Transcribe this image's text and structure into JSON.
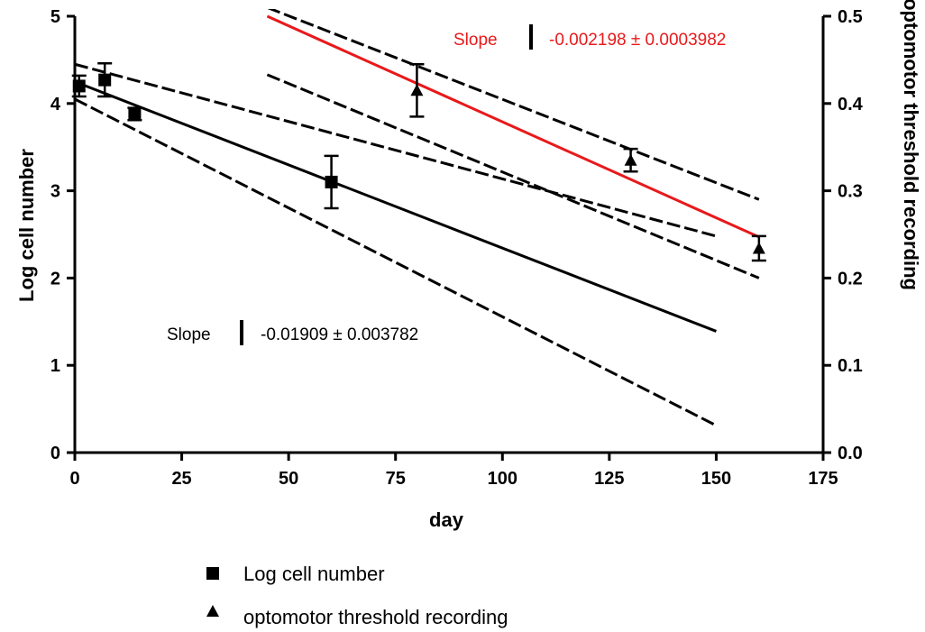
{
  "chart_data": {
    "type": "scatter",
    "x_axis": {
      "label": "day",
      "range": [
        0,
        175
      ],
      "ticks": [
        0,
        25,
        50,
        75,
        100,
        125,
        150,
        175
      ]
    },
    "y_axis_left": {
      "label": "Log cell number",
      "range": [
        0,
        5
      ],
      "ticks": [
        0,
        1,
        2,
        3,
        4,
        5
      ]
    },
    "y_axis_right": {
      "label": "optomotor threshold recording",
      "range": [
        0.0,
        0.5
      ],
      "ticks": [
        "0.0",
        "0.1",
        "0.2",
        "0.3",
        "0.4",
        "0.5"
      ]
    },
    "grid": false,
    "legend_position": "bottom",
    "series": [
      {
        "name": "Log cell number",
        "axis": "left",
        "marker": "square",
        "color": "#000000",
        "points": [
          {
            "x": 1,
            "y": 4.2,
            "err": 0.12
          },
          {
            "x": 7,
            "y": 4.27,
            "err": 0.19
          },
          {
            "x": 14,
            "y": 3.88,
            "err": 0.07
          },
          {
            "x": 60,
            "y": 3.1,
            "err": 0.3
          }
        ],
        "fit": {
          "x": [
            0,
            150
          ],
          "y": [
            4.25,
            1.39
          ]
        },
        "ci_upper": {
          "x": [
            0,
            150
          ],
          "y": [
            4.45,
            2.48
          ]
        },
        "ci_lower": {
          "x": [
            0,
            150
          ],
          "y": [
            4.05,
            0.31
          ]
        },
        "slope_label": "Slope",
        "slope_value": "-0.01909 ± 0.003782"
      },
      {
        "name": "optomotor threshold recording",
        "axis": "right",
        "marker": "triangle",
        "color": "#000000",
        "points": [
          {
            "x": 80,
            "y": 0.415,
            "err": 0.03
          },
          {
            "x": 130,
            "y": 0.335,
            "err": 0.013
          },
          {
            "x": 160,
            "y": 0.234,
            "err": 0.014
          }
        ],
        "fit": {
          "x": [
            45,
            160
          ],
          "y": [
            0.5,
            0.247
          ]
        },
        "ci_upper": {
          "x": [
            45,
            160
          ],
          "y": [
            0.51,
            0.29
          ]
        },
        "ci_lower": {
          "x": [
            45,
            160
          ],
          "y": [
            0.433,
            0.2
          ]
        },
        "fit_color": "#e8191b",
        "slope_label": "Slope",
        "slope_value": "-0.002198 ± 0.0003982"
      }
    ]
  }
}
